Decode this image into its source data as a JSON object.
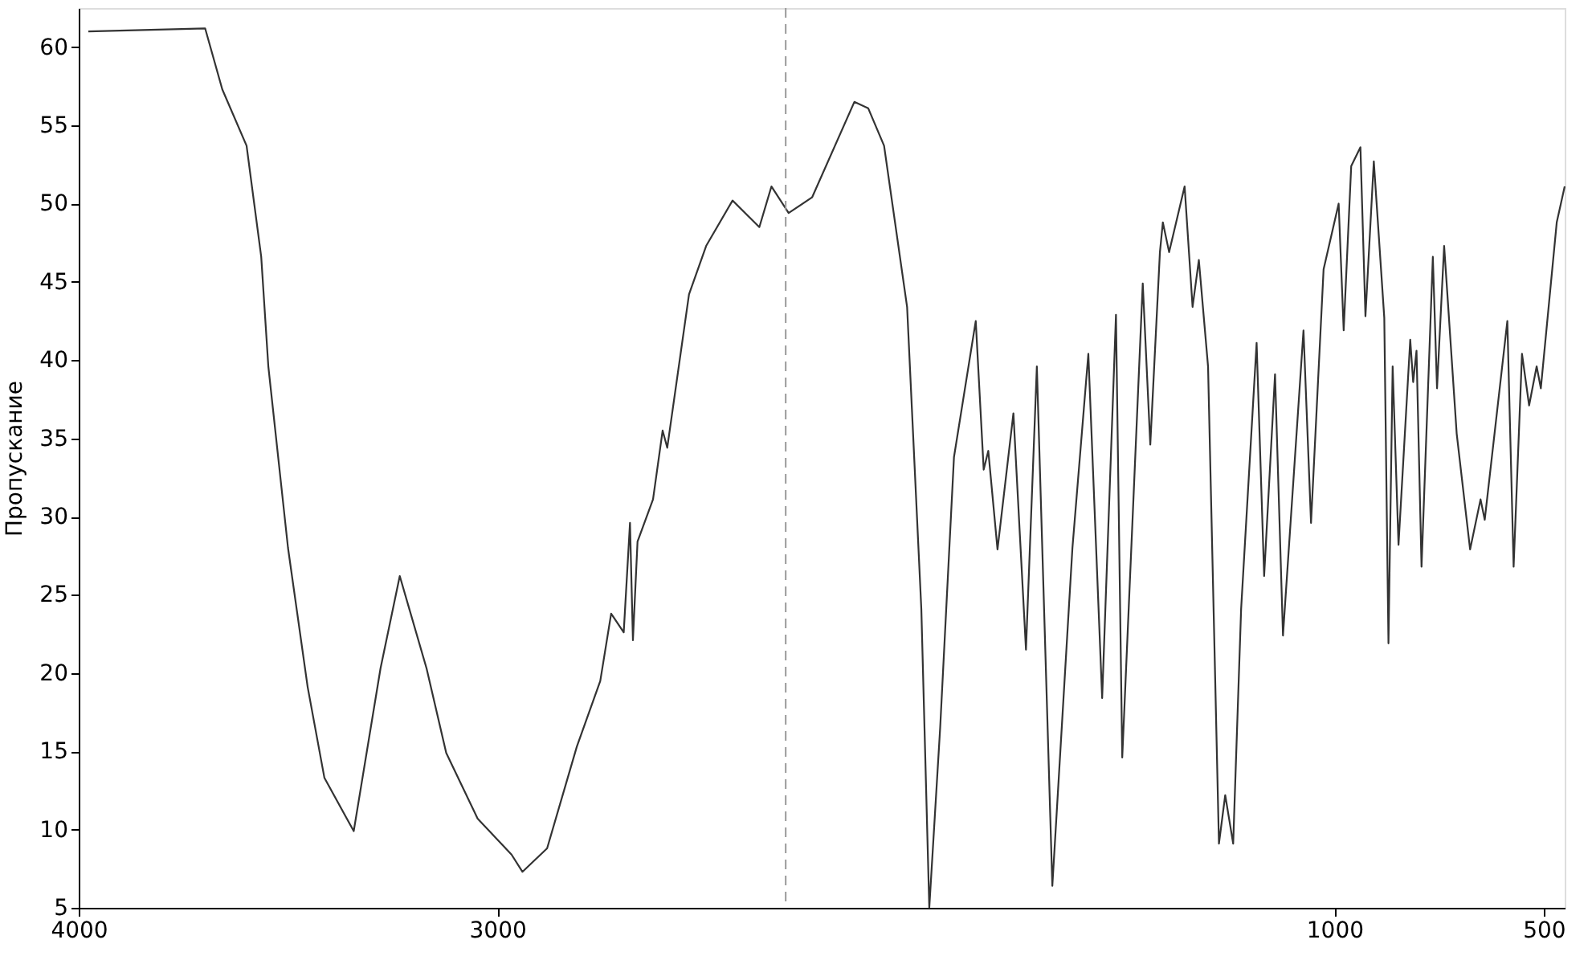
{
  "chart_data": {
    "type": "line",
    "ylabel": "Пропускание",
    "xlim": [
      4000,
      450
    ],
    "ylim": [
      5,
      62.5
    ],
    "xticks": [
      4000,
      3000,
      1000,
      500
    ],
    "yticks": [
      5,
      10,
      15,
      20,
      25,
      30,
      35,
      40,
      45,
      50,
      55,
      60
    ],
    "grid": false,
    "marker": "none",
    "line_style": "solid",
    "ref_lines": [
      {
        "axis": "x",
        "value": 2311,
        "color": "#999999",
        "line_style": "dashed"
      }
    ],
    "series": [
      {
        "color": "#333333",
        "x": [
          3977,
          3698,
          3657,
          3599,
          3564,
          3547,
          3500,
          3453,
          3413,
          3343,
          3279,
          3233,
          3169,
          3122,
          3047,
          2966,
          2940,
          2881,
          2810,
          2754,
          2728,
          2698,
          2683,
          2676,
          2665,
          2628,
          2605,
          2594,
          2542,
          2501,
          2438,
          2374,
          2345,
          2304,
          2248,
          2147,
          2114,
          2076,
          2021,
          1987,
          1968,
          1942,
          1909,
          1857,
          1838,
          1827,
          1805,
          1767,
          1737,
          1711,
          1674,
          1626,
          1588,
          1555,
          1522,
          1507,
          1458,
          1440,
          1417,
          1410,
          1395,
          1358,
          1339,
          1324,
          1302,
          1276,
          1261,
          1242,
          1223,
          1186,
          1168,
          1142,
          1123,
          1074,
          1056,
          1026,
          990,
          978,
          960,
          938,
          926,
          906,
          881,
          871,
          861,
          847,
          819,
          812,
          804,
          792,
          765,
          755,
          738,
          708,
          676,
          651,
          641,
          587,
          572,
          552,
          535,
          517,
          507,
          469,
          450
        ],
        "values": [
          61.0,
          61.2,
          57.3,
          53.7,
          46.6,
          39.6,
          28.0,
          19.1,
          13.3,
          9.9,
          20.3,
          26.2,
          20.3,
          14.9,
          10.7,
          8.4,
          7.3,
          8.8,
          15.3,
          19.5,
          23.8,
          22.6,
          29.6,
          22.1,
          28.4,
          31.1,
          35.5,
          34.4,
          44.2,
          47.3,
          50.2,
          48.5,
          51.1,
          49.4,
          50.4,
          56.5,
          56.1,
          53.7,
          43.4,
          24.1,
          5.0,
          16.5,
          33.8,
          42.5,
          33.0,
          34.2,
          27.9,
          36.6,
          21.5,
          39.6,
          6.4,
          28.0,
          40.4,
          18.4,
          42.9,
          14.6,
          44.9,
          34.6,
          46.9,
          48.8,
          46.9,
          51.1,
          43.4,
          46.4,
          39.6,
          9.1,
          12.2,
          9.1,
          24.1,
          41.1,
          26.2,
          39.1,
          22.4,
          41.9,
          29.6,
          45.8,
          50.0,
          41.9,
          52.4,
          53.6,
          42.8,
          52.7,
          42.7,
          21.9,
          39.6,
          28.2,
          41.3,
          38.6,
          40.6,
          26.8,
          46.6,
          38.2,
          47.3,
          35.3,
          27.9,
          31.1,
          29.8,
          42.5,
          26.8,
          40.4,
          37.1,
          39.6,
          38.2,
          48.8,
          51.1
        ]
      }
    ]
  }
}
